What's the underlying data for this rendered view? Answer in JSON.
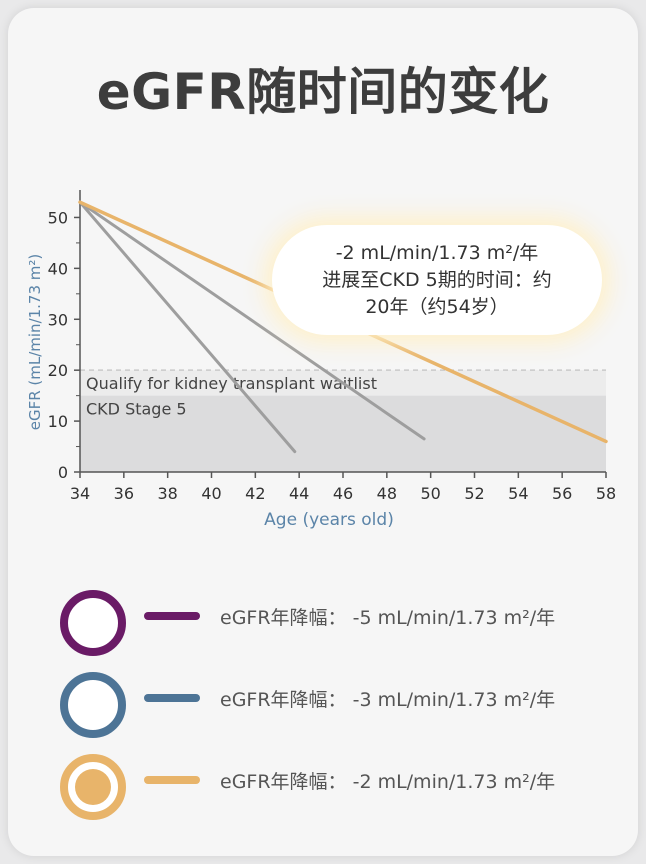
{
  "title": "eGFR随时间的变化",
  "callout": {
    "line1": "-2 mL/min/1.73 m²/年",
    "line2": "进展至CKD 5期的时间：约",
    "line3": "20年（约54岁）"
  },
  "legend": [
    {
      "label": "eGFR年降幅：  -5 mL/min/1.73 m²/年",
      "color": "#6a1b66",
      "filled": false
    },
    {
      "label": "eGFR年降幅：  -3 mL/min/1.73 m²/年",
      "color": "#4d7496",
      "filled": false
    },
    {
      "label": "eGFR年降幅：  -2 mL/min/1.73 m²/年",
      "color": "#e8b46a",
      "filled": true
    }
  ],
  "chart_data": {
    "type": "line",
    "xlabel": "Age (years old)",
    "ylabel": "eGFR (mL/min/1.73 m²)",
    "xlim": [
      34,
      58
    ],
    "ylim": [
      0,
      55
    ],
    "xticks": [
      34,
      36,
      38,
      40,
      42,
      44,
      46,
      48,
      50,
      52,
      54,
      56,
      58
    ],
    "yticks": [
      0,
      10,
      20,
      30,
      40,
      50
    ],
    "bands": [
      {
        "label": "Qualify for kidney transplant waitlist",
        "from": 15,
        "to": 20,
        "color": "#ececec"
      },
      {
        "label": "CKD Stage 5",
        "from": 0,
        "to": 15,
        "color": "#dcdcdd"
      }
    ],
    "series": [
      {
        "color": "#9e9e9e",
        "x": [
          34,
          43.8
        ],
        "y": [
          53,
          4
        ]
      },
      {
        "color": "#9e9e9e",
        "x": [
          34,
          49.7
        ],
        "y": [
          53,
          6.5
        ]
      },
      {
        "color": "#e8b46a",
        "x": [
          34,
          58
        ],
        "y": [
          53,
          6
        ]
      }
    ]
  }
}
